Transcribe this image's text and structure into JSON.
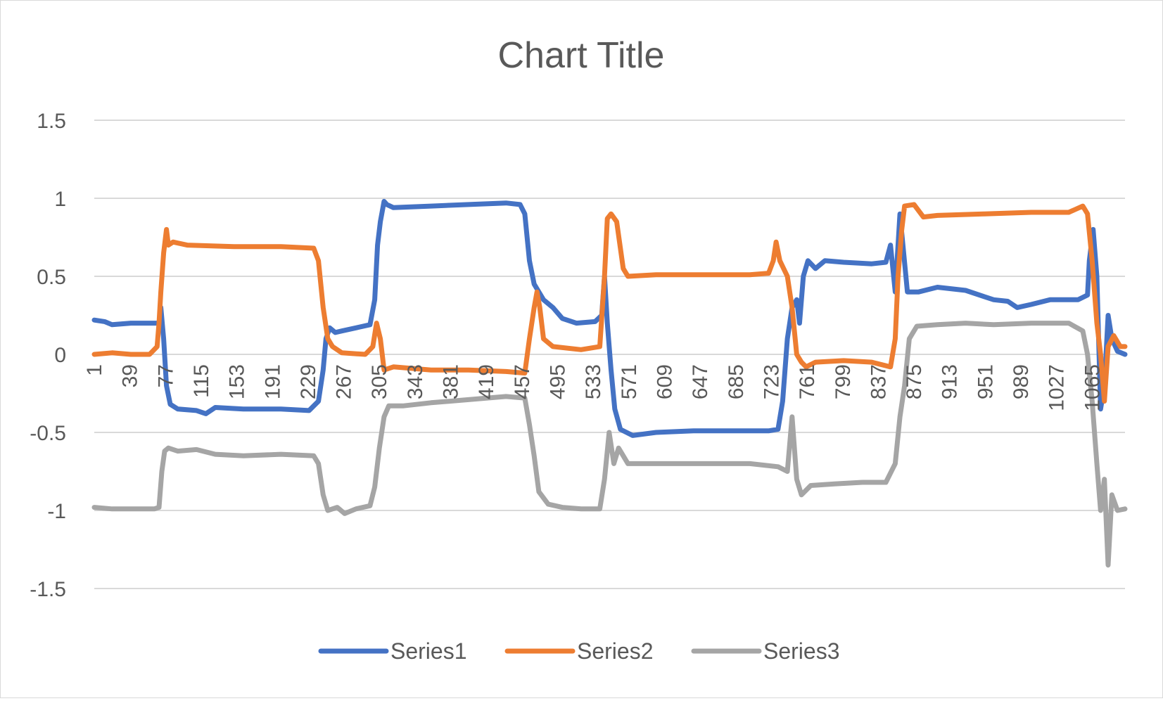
{
  "chart_data": {
    "type": "line",
    "title": "Chart Title",
    "xlabel": "",
    "ylabel": "",
    "ylim": [
      -1.5,
      1.5
    ],
    "yticks": [
      "1.5",
      "1",
      "0.5",
      "0",
      "-0.5",
      "-1",
      "-1.5"
    ],
    "xlim": [
      1,
      1100
    ],
    "xticks": [
      "1",
      "39",
      "77",
      "115",
      "153",
      "191",
      "229",
      "267",
      "305",
      "343",
      "381",
      "419",
      "457",
      "495",
      "533",
      "571",
      "609",
      "647",
      "685",
      "723",
      "761",
      "799",
      "837",
      "875",
      "913",
      "951",
      "989",
      "1027",
      "1065"
    ],
    "grid": true,
    "legend_position": "bottom",
    "series": [
      {
        "name": "Series1",
        "color": "#4472C4",
        "points": [
          [
            1,
            0.22
          ],
          [
            12,
            0.21
          ],
          [
            20,
            0.19
          ],
          [
            40,
            0.2
          ],
          [
            60,
            0.2
          ],
          [
            70,
            0.2
          ],
          [
            72,
            0.3
          ],
          [
            75,
            0.1
          ],
          [
            78,
            -0.2
          ],
          [
            82,
            -0.32
          ],
          [
            90,
            -0.35
          ],
          [
            110,
            -0.36
          ],
          [
            120,
            -0.38
          ],
          [
            130,
            -0.34
          ],
          [
            160,
            -0.35
          ],
          [
            200,
            -0.35
          ],
          [
            230,
            -0.36
          ],
          [
            240,
            -0.3
          ],
          [
            245,
            -0.1
          ],
          [
            248,
            0.1
          ],
          [
            252,
            0.17
          ],
          [
            258,
            0.14
          ],
          [
            265,
            0.15
          ],
          [
            280,
            0.17
          ],
          [
            295,
            0.19
          ],
          [
            300,
            0.35
          ],
          [
            303,
            0.7
          ],
          [
            306,
            0.85
          ],
          [
            310,
            0.98
          ],
          [
            313,
            0.96
          ],
          [
            320,
            0.94
          ],
          [
            360,
            0.95
          ],
          [
            400,
            0.96
          ],
          [
            440,
            0.97
          ],
          [
            455,
            0.96
          ],
          [
            460,
            0.9
          ],
          [
            465,
            0.6
          ],
          [
            470,
            0.45
          ],
          [
            480,
            0.35
          ],
          [
            490,
            0.3
          ],
          [
            500,
            0.23
          ],
          [
            515,
            0.2
          ],
          [
            535,
            0.21
          ],
          [
            542,
            0.25
          ],
          [
            545,
            0.5
          ],
          [
            548,
            0.2
          ],
          [
            552,
            -0.1
          ],
          [
            556,
            -0.35
          ],
          [
            562,
            -0.48
          ],
          [
            575,
            -0.52
          ],
          [
            600,
            -0.5
          ],
          [
            640,
            -0.49
          ],
          [
            680,
            -0.49
          ],
          [
            720,
            -0.49
          ],
          [
            730,
            -0.48
          ],
          [
            735,
            -0.3
          ],
          [
            740,
            0.1
          ],
          [
            745,
            0.3
          ],
          [
            750,
            0.35
          ],
          [
            753,
            0.2
          ],
          [
            757,
            0.5
          ],
          [
            762,
            0.6
          ],
          [
            770,
            0.55
          ],
          [
            780,
            0.6
          ],
          [
            800,
            0.59
          ],
          [
            830,
            0.58
          ],
          [
            845,
            0.59
          ],
          [
            850,
            0.7
          ],
          [
            855,
            0.4
          ],
          [
            860,
            0.9
          ],
          [
            868,
            0.4
          ],
          [
            880,
            0.4
          ],
          [
            900,
            0.43
          ],
          [
            930,
            0.41
          ],
          [
            950,
            0.37
          ],
          [
            960,
            0.35
          ],
          [
            975,
            0.34
          ],
          [
            985,
            0.3
          ],
          [
            1000,
            0.32
          ],
          [
            1020,
            0.35
          ],
          [
            1050,
            0.35
          ],
          [
            1060,
            0.38
          ],
          [
            1062,
            0.6
          ],
          [
            1066,
            0.8
          ],
          [
            1070,
            0.5
          ],
          [
            1074,
            -0.35
          ],
          [
            1078,
            -0.2
          ],
          [
            1082,
            0.25
          ],
          [
            1086,
            0.1
          ],
          [
            1092,
            0.02
          ],
          [
            1100,
            0.0
          ]
        ]
      },
      {
        "name": "Series2",
        "color": "#ED7D31",
        "points": [
          [
            1,
            0.0
          ],
          [
            20,
            0.01
          ],
          [
            40,
            0.0
          ],
          [
            60,
            0.0
          ],
          [
            68,
            0.05
          ],
          [
            70,
            0.2
          ],
          [
            72,
            0.4
          ],
          [
            75,
            0.65
          ],
          [
            78,
            0.8
          ],
          [
            80,
            0.7
          ],
          [
            85,
            0.72
          ],
          [
            100,
            0.7
          ],
          [
            150,
            0.69
          ],
          [
            200,
            0.69
          ],
          [
            235,
            0.68
          ],
          [
            240,
            0.6
          ],
          [
            245,
            0.3
          ],
          [
            250,
            0.1
          ],
          [
            255,
            0.05
          ],
          [
            265,
            0.01
          ],
          [
            290,
            0.0
          ],
          [
            298,
            0.05
          ],
          [
            302,
            0.2
          ],
          [
            306,
            0.1
          ],
          [
            310,
            -0.1
          ],
          [
            320,
            -0.08
          ],
          [
            360,
            -0.1
          ],
          [
            400,
            -0.1
          ],
          [
            440,
            -0.11
          ],
          [
            460,
            -0.12
          ],
          [
            465,
            0.1
          ],
          [
            470,
            0.3
          ],
          [
            473,
            0.4
          ],
          [
            476,
            0.3
          ],
          [
            480,
            0.1
          ],
          [
            490,
            0.05
          ],
          [
            520,
            0.03
          ],
          [
            540,
            0.05
          ],
          [
            545,
            0.5
          ],
          [
            548,
            0.87
          ],
          [
            552,
            0.9
          ],
          [
            558,
            0.85
          ],
          [
            565,
            0.55
          ],
          [
            570,
            0.5
          ],
          [
            600,
            0.51
          ],
          [
            650,
            0.51
          ],
          [
            700,
            0.51
          ],
          [
            720,
            0.52
          ],
          [
            725,
            0.6
          ],
          [
            728,
            0.72
          ],
          [
            732,
            0.6
          ],
          [
            740,
            0.5
          ],
          [
            745,
            0.3
          ],
          [
            750,
            0.0
          ],
          [
            755,
            -0.05
          ],
          [
            760,
            -0.08
          ],
          [
            770,
            -0.05
          ],
          [
            800,
            -0.04
          ],
          [
            830,
            -0.05
          ],
          [
            850,
            -0.08
          ],
          [
            855,
            0.1
          ],
          [
            858,
            0.5
          ],
          [
            862,
            0.8
          ],
          [
            865,
            0.95
          ],
          [
            875,
            0.96
          ],
          [
            885,
            0.88
          ],
          [
            900,
            0.89
          ],
          [
            950,
            0.9
          ],
          [
            1000,
            0.91
          ],
          [
            1040,
            0.91
          ],
          [
            1055,
            0.95
          ],
          [
            1060,
            0.9
          ],
          [
            1065,
            0.6
          ],
          [
            1070,
            0.2
          ],
          [
            1074,
            0.0
          ],
          [
            1078,
            -0.3
          ],
          [
            1082,
            0.05
          ],
          [
            1088,
            0.12
          ],
          [
            1095,
            0.05
          ],
          [
            1100,
            0.05
          ]
        ]
      },
      {
        "name": "Series3",
        "color": "#A5A5A5",
        "points": [
          [
            1,
            -0.98
          ],
          [
            20,
            -0.99
          ],
          [
            40,
            -0.99
          ],
          [
            65,
            -0.99
          ],
          [
            70,
            -0.98
          ],
          [
            73,
            -0.75
          ],
          [
            76,
            -0.62
          ],
          [
            80,
            -0.6
          ],
          [
            90,
            -0.62
          ],
          [
            110,
            -0.61
          ],
          [
            130,
            -0.64
          ],
          [
            160,
            -0.65
          ],
          [
            200,
            -0.64
          ],
          [
            235,
            -0.65
          ],
          [
            240,
            -0.7
          ],
          [
            245,
            -0.9
          ],
          [
            250,
            -1.0
          ],
          [
            260,
            -0.98
          ],
          [
            268,
            -1.02
          ],
          [
            280,
            -0.99
          ],
          [
            295,
            -0.97
          ],
          [
            300,
            -0.85
          ],
          [
            305,
            -0.6
          ],
          [
            310,
            -0.4
          ],
          [
            315,
            -0.33
          ],
          [
            330,
            -0.33
          ],
          [
            360,
            -0.31
          ],
          [
            400,
            -0.29
          ],
          [
            440,
            -0.27
          ],
          [
            460,
            -0.28
          ],
          [
            465,
            -0.45
          ],
          [
            470,
            -0.65
          ],
          [
            475,
            -0.88
          ],
          [
            485,
            -0.96
          ],
          [
            500,
            -0.98
          ],
          [
            520,
            -0.99
          ],
          [
            540,
            -0.99
          ],
          [
            545,
            -0.8
          ],
          [
            550,
            -0.5
          ],
          [
            555,
            -0.7
          ],
          [
            560,
            -0.6
          ],
          [
            570,
            -0.7
          ],
          [
            600,
            -0.7
          ],
          [
            650,
            -0.7
          ],
          [
            700,
            -0.7
          ],
          [
            730,
            -0.72
          ],
          [
            740,
            -0.75
          ],
          [
            745,
            -0.4
          ],
          [
            750,
            -0.8
          ],
          [
            755,
            -0.9
          ],
          [
            765,
            -0.84
          ],
          [
            790,
            -0.83
          ],
          [
            820,
            -0.82
          ],
          [
            845,
            -0.82
          ],
          [
            855,
            -0.7
          ],
          [
            860,
            -0.4
          ],
          [
            865,
            -0.2
          ],
          [
            870,
            0.1
          ],
          [
            878,
            0.18
          ],
          [
            900,
            0.19
          ],
          [
            930,
            0.2
          ],
          [
            960,
            0.19
          ],
          [
            1000,
            0.2
          ],
          [
            1040,
            0.2
          ],
          [
            1055,
            0.15
          ],
          [
            1060,
            0.0
          ],
          [
            1065,
            -0.3
          ],
          [
            1070,
            -0.7
          ],
          [
            1074,
            -1.0
          ],
          [
            1078,
            -0.8
          ],
          [
            1082,
            -1.35
          ],
          [
            1086,
            -0.9
          ],
          [
            1092,
            -1.0
          ],
          [
            1100,
            -0.99
          ]
        ]
      }
    ]
  }
}
